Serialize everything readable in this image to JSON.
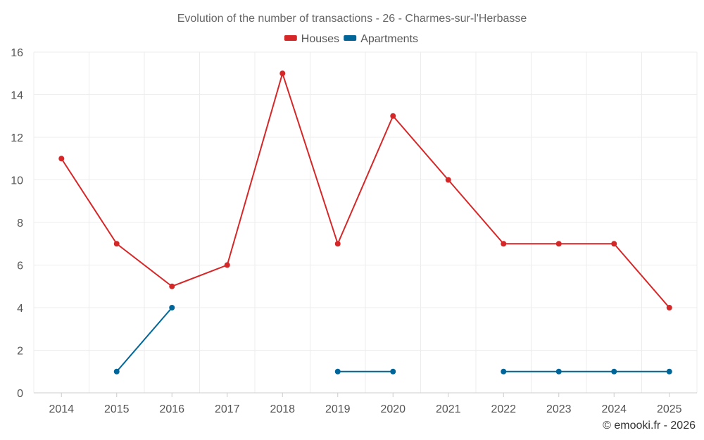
{
  "chart_data": {
    "type": "line",
    "title": "Evolution of the number of transactions - 26 - Charmes-sur-l'Herbasse",
    "categories": [
      "2014",
      "2015",
      "2016",
      "2017",
      "2018",
      "2019",
      "2020",
      "2021",
      "2022",
      "2023",
      "2024",
      "2025"
    ],
    "ylim": [
      0,
      16
    ],
    "yticks": [
      0,
      2,
      4,
      6,
      8,
      10,
      12,
      14,
      16
    ],
    "grid": true,
    "legend_position": "top-center",
    "series": [
      {
        "name": "Houses",
        "color": "#d62728",
        "values": [
          11,
          7,
          5,
          6,
          15,
          7,
          13,
          10,
          7,
          7,
          7,
          4
        ]
      },
      {
        "name": "Apartments",
        "color": "#006699",
        "values": [
          null,
          1,
          4,
          null,
          null,
          1,
          1,
          null,
          1,
          1,
          1,
          1
        ]
      }
    ]
  },
  "credit": "© emooki.fr - 2026"
}
